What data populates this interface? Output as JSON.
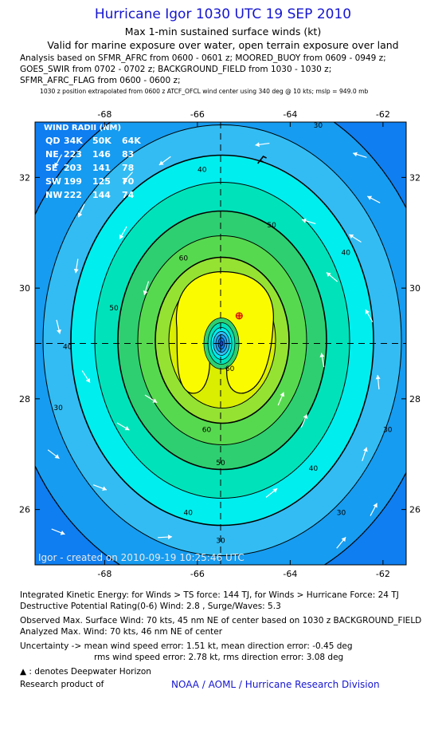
{
  "header": {
    "title": "Hurricane Igor 1030 UTC 19 SEP 2010",
    "subtitle1": "Max 1-min sustained surface winds (kt)",
    "subtitle2": "Valid for marine exposure over water, open terrain exposure over land",
    "analysis": [
      "Analysis based on SFMR_AFRC from 0600 - 0601 z; MOORED_BUOY from 0609 - 0949 z;",
      "GOES_SWIR from 0702 - 0702 z; BACKGROUND_FIELD from 1030 - 1030 z;",
      "SFMR_AFRC_FLAG from 0600 - 0600 z;"
    ],
    "extrapolation": "1030 z position extrapolated from 0600 z ATCF_OFCL wind center using 340 deg @ 10 kts; mslp = 949.0 mb"
  },
  "colors": {
    "contour_bands": [
      "#0e7ef0",
      "#169cf0",
      "#33bcf3",
      "#00eeee",
      "#00e3ba",
      "#2ecf70",
      "#57d94f",
      "#95e232",
      "#d9ee00",
      "#fbfb00"
    ],
    "plot_border": "#000000",
    "title": "#1515d0"
  },
  "chart_data": {
    "type": "contour",
    "xlabel": "",
    "ylabel": "",
    "xlim": [
      -69.5,
      -61.5
    ],
    "ylim": [
      25.0,
      33.0
    ],
    "x_ticks": [
      -68,
      -66,
      -64,
      -62
    ],
    "y_ticks": [
      26,
      28,
      30,
      32
    ],
    "tick_labels_x": [
      "-68",
      "-66",
      "-64",
      "-62"
    ],
    "tick_labels_y": [
      "26",
      "28",
      "30",
      "32"
    ],
    "center": {
      "lon": -65.5,
      "lat": 29.0
    },
    "contour_labels": [
      {
        "text": "30",
        "lon": -63.4,
        "lat": 32.9
      },
      {
        "text": "40",
        "lon": -65.9,
        "lat": 32.1
      },
      {
        "text": "50",
        "lon": -64.4,
        "lat": 31.1
      },
      {
        "text": "60",
        "lon": -66.3,
        "lat": 30.5
      },
      {
        "text": "40",
        "lon": -62.8,
        "lat": 30.6
      },
      {
        "text": "50",
        "lon": -67.8,
        "lat": 29.6
      },
      {
        "text": "40",
        "lon": -68.8,
        "lat": 28.9
      },
      {
        "text": "60",
        "lon": -65.8,
        "lat": 27.4
      },
      {
        "text": "50",
        "lon": -65.5,
        "lat": 26.8
      },
      {
        "text": "40",
        "lon": -63.5,
        "lat": 26.7
      },
      {
        "text": "30",
        "lon": -69.0,
        "lat": 27.8
      },
      {
        "text": "40",
        "lon": -66.2,
        "lat": 25.9
      },
      {
        "text": "30",
        "lon": -62.9,
        "lat": 25.9
      },
      {
        "text": "30",
        "lon": -61.9,
        "lat": 27.4
      },
      {
        "text": "30",
        "lon": -65.5,
        "lat": 25.4
      },
      {
        "text": "60",
        "lon": -65.3,
        "lat": 28.5
      }
    ],
    "wind_radii": {
      "title": "WIND RADII (NM)",
      "header": [
        "QD",
        "34K",
        "50K",
        "64K"
      ],
      "rows": [
        [
          "NE",
          "223",
          "146",
          "83"
        ],
        [
          "SE",
          "203",
          "141",
          "78"
        ],
        [
          "SW",
          "199",
          "125",
          "70"
        ],
        [
          "NW",
          "222",
          "144",
          "74"
        ]
      ]
    },
    "observed_max_location": {
      "lon": -65.1,
      "lat": 29.5
    },
    "credit": "Igor - created on 2010-09-19 10:25:46 UTC"
  },
  "footer": {
    "ike": "Integrated Kinetic Energy:  for Winds > TS force: 144 TJ,  for Winds > Hurricane Force: 24 TJ",
    "dpr": "Destructive Potential Rating(0-6)   Wind: 2.8 , Surge/Waves: 5.3",
    "observed": "Observed Max. Surface Wind: 70 kts, 45 nm NE of center based on 1030 z BACKGROUND_FIELD",
    "analyzed": "Analyzed Max. Wind: 70 kts, 46 nm NE of center",
    "uncertainty1": "Uncertainty -> mean wind speed error: 1.51 kt,   mean direction error:  -0.45 deg",
    "uncertainty2": "rms wind speed error: 2.78 kt,   rms direction error: 3.08 deg",
    "deepwater": ": denotes Deepwater Horizon",
    "research": "Research product of",
    "org": "NOAA / AOML / Hurricane Research Division"
  }
}
